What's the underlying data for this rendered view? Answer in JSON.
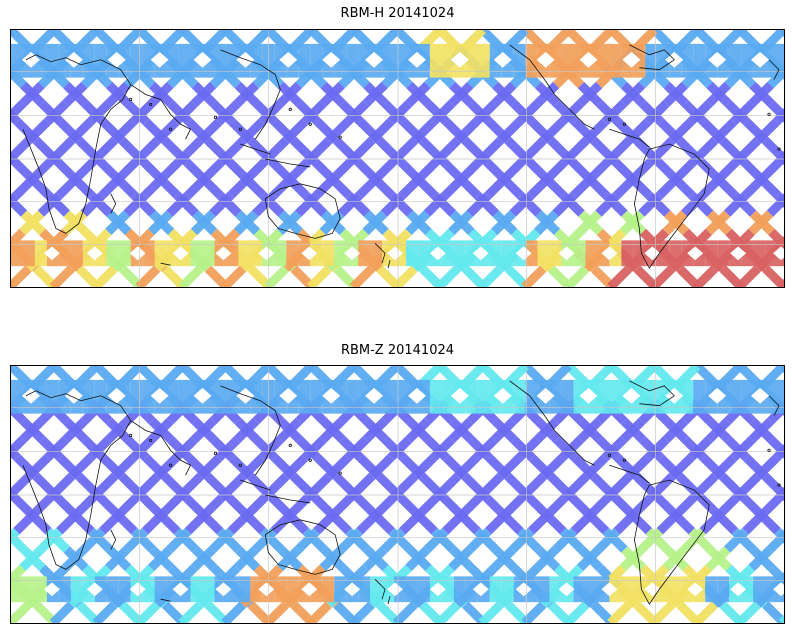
{
  "figure": {
    "panels": [
      {
        "id": "top",
        "title": "RBM-H 20141024",
        "theme": "high"
      },
      {
        "id": "bottom",
        "title": "RBM-Z 20141024",
        "theme": "low"
      }
    ]
  },
  "colors": {
    "blue": "#6b6bf2",
    "lightblue": "#5aaaf2",
    "cyan": "#63e8ee",
    "green": "#b6f28a",
    "yellow": "#f2e163",
    "orange": "#f2a05a",
    "red": "#d96262",
    "grid": "#c8c8c8",
    "coast": "#111111"
  }
}
